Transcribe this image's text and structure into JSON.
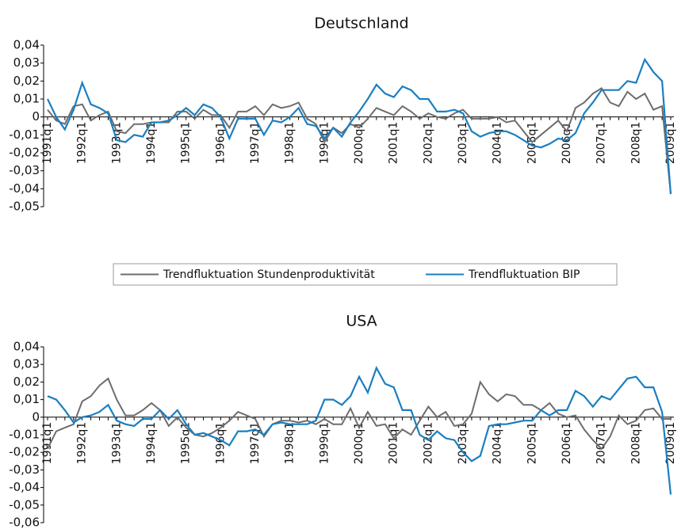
{
  "chart_data": [
    {
      "type": "line",
      "title": "Deutschland",
      "categories": [
        "1991q1",
        null,
        null,
        null,
        "1992q1",
        null,
        null,
        null,
        "1993q1",
        null,
        null,
        null,
        "1994q1",
        null,
        null,
        null,
        "1995q1",
        null,
        null,
        null,
        "1996q1",
        null,
        null,
        null,
        "1997q1",
        null,
        null,
        null,
        "1998q1",
        null,
        null,
        null,
        "1999q1",
        null,
        null,
        null,
        "2000q1",
        null,
        null,
        null,
        "2001q1",
        null,
        null,
        null,
        "2002q1",
        null,
        null,
        null,
        "2003q1",
        null,
        null,
        null,
        "2004q1",
        null,
        null,
        null,
        "2005q1",
        null,
        null,
        null,
        "2006q1",
        null,
        null,
        null,
        "2007q1",
        null,
        null,
        null,
        "2008q1",
        null,
        null,
        null,
        "2009q1"
      ],
      "series": [
        {
          "name": "Trendfluktuation Stundenproduktivität",
          "color": "#6d6d6d",
          "values": [
            0.004,
            -0.002,
            -0.004,
            0.006,
            0.007,
            -0.002,
            0.001,
            0.003,
            -0.008,
            -0.009,
            -0.004,
            -0.004,
            -0.003,
            -0.003,
            -0.003,
            0.003,
            0.003,
            -0.001,
            0.004,
            0.001,
            0.001,
            -0.006,
            0.003,
            0.003,
            0.006,
            0.001,
            0.007,
            0.005,
            0.006,
            0.008,
            -0.001,
            -0.004,
            -0.014,
            -0.006,
            -0.009,
            -0.004,
            -0.006,
            -0.001,
            0.005,
            0.003,
            0.001,
            0.006,
            0.003,
            -0.001,
            0.002,
            0.0,
            -0.001,
            0.002,
            0.004,
            -0.001,
            -0.001,
            -0.001,
            0.0,
            -0.003,
            -0.002,
            -0.008,
            -0.014,
            -0.01,
            -0.006,
            -0.002,
            -0.008,
            0.005,
            0.008,
            0.013,
            0.016,
            0.008,
            0.006,
            0.014,
            0.01,
            0.013,
            0.004,
            0.006,
            -0.043
          ]
        },
        {
          "name": "Trendfluktuation BIP",
          "color": "#1a7fc1",
          "values": [
            0.01,
            0.0,
            -0.007,
            0.004,
            0.019,
            0.007,
            0.005,
            0.002,
            -0.013,
            -0.014,
            -0.01,
            -0.011,
            -0.003,
            -0.003,
            -0.002,
            0.001,
            0.005,
            0.001,
            0.007,
            0.005,
            0.0,
            -0.012,
            -0.001,
            -0.001,
            -0.001,
            -0.01,
            -0.002,
            -0.003,
            0.0,
            0.005,
            -0.004,
            -0.005,
            -0.012,
            -0.006,
            -0.011,
            -0.003,
            0.003,
            0.01,
            0.018,
            0.013,
            0.011,
            0.017,
            0.015,
            0.01,
            0.01,
            0.003,
            0.003,
            0.004,
            0.002,
            -0.008,
            -0.011,
            -0.009,
            -0.008,
            -0.008,
            -0.01,
            -0.013,
            -0.016,
            -0.017,
            -0.015,
            -0.012,
            -0.013,
            -0.009,
            0.002,
            0.008,
            0.015,
            0.015,
            0.015,
            0.02,
            0.019,
            0.032,
            0.025,
            0.02,
            -0.043
          ]
        }
      ],
      "ylim": [
        -0.05,
        0.04
      ],
      "yticks": [
        {
          "value": 0.04,
          "label": "0,04"
        },
        {
          "value": 0.03,
          "label": "0,03"
        },
        {
          "value": 0.02,
          "label": "0,02"
        },
        {
          "value": 0.01,
          "label": "0,01"
        },
        0,
        {
          "value": -0.01,
          "label": "-0,01"
        },
        {
          "value": -0.02,
          "label": "-0,02"
        },
        {
          "value": -0.03,
          "label": "-0,03"
        },
        {
          "value": -0.04,
          "label": "-0,04"
        },
        {
          "value": -0.05,
          "label": "-0,05"
        }
      ],
      "legend": "bottom"
    },
    {
      "type": "line",
      "title": "USA",
      "categories": [
        "1991q1",
        null,
        null,
        null,
        "1992q1",
        null,
        null,
        null,
        "1993q1",
        null,
        null,
        null,
        "1994q1",
        null,
        null,
        null,
        "1995q1",
        null,
        null,
        null,
        "1996q1",
        null,
        null,
        null,
        "1997q1",
        null,
        null,
        null,
        "1998q1",
        null,
        null,
        null,
        "1999q1",
        null,
        null,
        null,
        "2000q1",
        null,
        null,
        null,
        "2001q1",
        null,
        null,
        null,
        "2002q1",
        null,
        null,
        null,
        "2003q1",
        null,
        null,
        null,
        "2004q1",
        null,
        null,
        null,
        "2005q1",
        null,
        null,
        null,
        "2006q1",
        null,
        null,
        null,
        "2007q1",
        null,
        null,
        null,
        "2008q1",
        null,
        null,
        null,
        "2009q1"
      ],
      "series": [
        {
          "color": "#6d6d6d",
          "values": [
            -0.018,
            -0.008,
            -0.006,
            -0.004,
            0.009,
            0.012,
            0.018,
            0.022,
            0.01,
            0.001,
            0.001,
            0.004,
            0.008,
            0.004,
            -0.005,
            0.0,
            -0.006,
            -0.01,
            -0.011,
            -0.009,
            -0.006,
            -0.002,
            0.003,
            0.001,
            -0.001,
            -0.011,
            -0.004,
            -0.002,
            -0.002,
            -0.003,
            -0.002,
            -0.004,
            -0.001,
            -0.004,
            -0.004,
            0.005,
            -0.006,
            0.003,
            -0.005,
            -0.004,
            -0.012,
            -0.007,
            -0.01,
            -0.002,
            0.006,
            0.0,
            0.003,
            -0.005,
            -0.004,
            0.002,
            0.02,
            0.013,
            0.009,
            0.013,
            0.012,
            0.007,
            0.007,
            0.004,
            0.008,
            0.002,
            0.0,
            0.001,
            -0.007,
            -0.013,
            -0.018,
            -0.011,
            0.001,
            -0.004,
            -0.002,
            0.004,
            0.005,
            -0.001,
            -0.001
          ]
        },
        {
          "color": "#1a7fc1",
          "values": [
            0.012,
            0.01,
            0.004,
            -0.003,
            0.0,
            0.001,
            0.003,
            0.007,
            -0.002,
            -0.004,
            -0.005,
            -0.001,
            -0.001,
            0.004,
            -0.001,
            0.004,
            -0.004,
            -0.01,
            -0.009,
            -0.011,
            -0.013,
            -0.016,
            -0.008,
            -0.008,
            -0.007,
            -0.01,
            -0.004,
            -0.003,
            -0.004,
            -0.004,
            -0.004,
            -0.002,
            0.01,
            0.01,
            0.007,
            0.012,
            0.023,
            0.014,
            0.028,
            0.019,
            0.017,
            0.004,
            0.004,
            -0.01,
            -0.013,
            -0.008,
            -0.012,
            -0.013,
            -0.02,
            -0.025,
            -0.022,
            -0.005,
            -0.004,
            -0.004,
            -0.003,
            -0.002,
            -0.002,
            0.004,
            0.001,
            0.004,
            0.004,
            0.015,
            0.012,
            0.006,
            0.012,
            0.01,
            0.016,
            0.022,
            0.023,
            0.017,
            0.017,
            0.003,
            -0.044
          ]
        }
      ],
      "ylim": [
        -0.06,
        0.04
      ],
      "yticks": [
        {
          "value": 0.04,
          "label": "0,04"
        },
        {
          "value": 0.03,
          "label": "0,03"
        },
        {
          "value": 0.02,
          "label": "0,02"
        },
        {
          "value": 0.01,
          "label": "0,01"
        },
        0,
        {
          "value": -0.01,
          "label": "-0,01"
        },
        {
          "value": -0.02,
          "label": "-0,02"
        },
        {
          "value": -0.03,
          "label": "-0,03"
        },
        {
          "value": -0.04,
          "label": "-0,04"
        },
        {
          "value": -0.05,
          "label": "-0,05"
        },
        {
          "value": -0.06,
          "label": "-0,06"
        }
      ]
    }
  ]
}
